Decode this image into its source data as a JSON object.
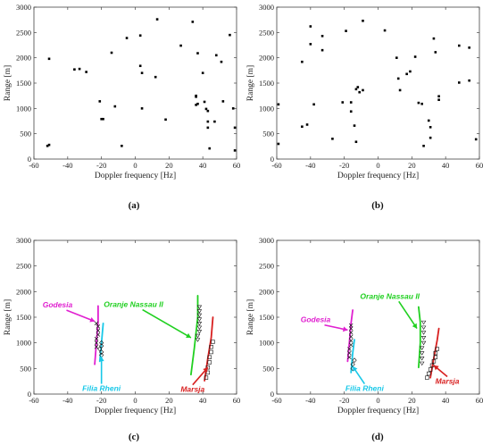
{
  "panels": [
    {
      "label": "(a)"
    },
    {
      "label": "(b)"
    },
    {
      "label": "(c)"
    },
    {
      "label": "(d)"
    }
  ],
  "chart_data": [
    {
      "type": "scatter",
      "panel": "(a)",
      "xlabel": "Doppler frequency [Hz]",
      "ylabel": "Range [m]",
      "xlim": [
        -60,
        60
      ],
      "ylim": [
        0,
        3000
      ],
      "xticks": [
        "-60",
        "-40",
        "-20",
        "0",
        "20",
        "40",
        "60"
      ],
      "yticks": [
        "0",
        "500",
        "1000",
        "1500",
        "2000",
        "2500",
        "3000"
      ],
      "grid": false,
      "points": [
        {
          "x": -51,
          "y": 1980
        },
        {
          "x": -52,
          "y": 260
        },
        {
          "x": -51,
          "y": 280
        },
        {
          "x": -36,
          "y": 1770
        },
        {
          "x": -33,
          "y": 1780
        },
        {
          "x": -29,
          "y": 1720
        },
        {
          "x": -21,
          "y": 1140
        },
        {
          "x": -20,
          "y": 790
        },
        {
          "x": -19,
          "y": 790
        },
        {
          "x": -14,
          "y": 2100
        },
        {
          "x": -12,
          "y": 1040
        },
        {
          "x": -8,
          "y": 260
        },
        {
          "x": -5,
          "y": 2390
        },
        {
          "x": 3,
          "y": 2440
        },
        {
          "x": 3,
          "y": 1840
        },
        {
          "x": 4,
          "y": 1700
        },
        {
          "x": 4,
          "y": 1000
        },
        {
          "x": 12,
          "y": 1620
        },
        {
          "x": 13,
          "y": 2760
        },
        {
          "x": 18,
          "y": 780
        },
        {
          "x": 27,
          "y": 2240
        },
        {
          "x": 34,
          "y": 2710
        },
        {
          "x": 36,
          "y": 1250
        },
        {
          "x": 36,
          "y": 1230
        },
        {
          "x": 36,
          "y": 1070
        },
        {
          "x": 37,
          "y": 2090
        },
        {
          "x": 37,
          "y": 1090
        },
        {
          "x": 40,
          "y": 1700
        },
        {
          "x": 41,
          "y": 1130
        },
        {
          "x": 42,
          "y": 990
        },
        {
          "x": 43,
          "y": 950
        },
        {
          "x": 43,
          "y": 740
        },
        {
          "x": 43,
          "y": 620
        },
        {
          "x": 44,
          "y": 210
        },
        {
          "x": 47,
          "y": 740
        },
        {
          "x": 48,
          "y": 2050
        },
        {
          "x": 51,
          "y": 1920
        },
        {
          "x": 52,
          "y": 1140
        },
        {
          "x": 56,
          "y": 2450
        },
        {
          "x": 58,
          "y": 1000
        },
        {
          "x": 59,
          "y": 620
        },
        {
          "x": 59,
          "y": 170
        }
      ]
    },
    {
      "type": "scatter",
      "panel": "(b)",
      "xlabel": "Doppler frequency [Hz]",
      "ylabel": "Range [m]",
      "xlim": [
        -60,
        60
      ],
      "ylim": [
        0,
        3000
      ],
      "xticks": [
        "-60",
        "-40",
        "-20",
        "0",
        "20",
        "40",
        "60"
      ],
      "yticks": [
        "0",
        "500",
        "1000",
        "1500",
        "2000",
        "2500",
        "3000"
      ],
      "grid": false,
      "points": [
        {
          "x": -59,
          "y": 1080
        },
        {
          "x": -59,
          "y": 300
        },
        {
          "x": -45,
          "y": 1920
        },
        {
          "x": -45,
          "y": 640
        },
        {
          "x": -42,
          "y": 680
        },
        {
          "x": -40,
          "y": 2620
        },
        {
          "x": -40,
          "y": 2270
        },
        {
          "x": -38,
          "y": 1080
        },
        {
          "x": -33,
          "y": 2430
        },
        {
          "x": -33,
          "y": 2150
        },
        {
          "x": -27,
          "y": 400
        },
        {
          "x": -21,
          "y": 1120
        },
        {
          "x": -19,
          "y": 2530
        },
        {
          "x": -16,
          "y": 1120
        },
        {
          "x": -16,
          "y": 940
        },
        {
          "x": -14,
          "y": 660
        },
        {
          "x": -13,
          "y": 1380
        },
        {
          "x": -13,
          "y": 340
        },
        {
          "x": -12,
          "y": 1420
        },
        {
          "x": -11,
          "y": 1320
        },
        {
          "x": -9,
          "y": 2730
        },
        {
          "x": -9,
          "y": 1360
        },
        {
          "x": 4,
          "y": 2540
        },
        {
          "x": 11,
          "y": 2000
        },
        {
          "x": 12,
          "y": 1590
        },
        {
          "x": 13,
          "y": 1360
        },
        {
          "x": 17,
          "y": 1680
        },
        {
          "x": 19,
          "y": 1730
        },
        {
          "x": 22,
          "y": 2020
        },
        {
          "x": 24,
          "y": 1110
        },
        {
          "x": 26,
          "y": 1090
        },
        {
          "x": 27,
          "y": 260
        },
        {
          "x": 30,
          "y": 760
        },
        {
          "x": 31,
          "y": 630
        },
        {
          "x": 31,
          "y": 420
        },
        {
          "x": 33,
          "y": 2380
        },
        {
          "x": 34,
          "y": 2110
        },
        {
          "x": 36,
          "y": 1240
        },
        {
          "x": 36,
          "y": 1170
        },
        {
          "x": 48,
          "y": 2240
        },
        {
          "x": 48,
          "y": 1510
        },
        {
          "x": 54,
          "y": 2200
        },
        {
          "x": 54,
          "y": 1550
        },
        {
          "x": 58,
          "y": 390
        }
      ]
    },
    {
      "type": "line",
      "panel": "(c)",
      "xlabel": "Doppler frequency [Hz]",
      "ylabel": "Range [m]",
      "xlim": [
        -60,
        60
      ],
      "ylim": [
        0,
        3000
      ],
      "xticks": [
        "-60",
        "-40",
        "-20",
        "0",
        "20",
        "40",
        "60"
      ],
      "yticks": [
        "0",
        "500",
        "1000",
        "1500",
        "2000",
        "2500",
        "3000"
      ],
      "grid": false,
      "series": [
        {
          "name": "Godesia",
          "color": "#e020d0",
          "marker": "x",
          "curve": [
            {
              "x": -24,
              "y": 580
            },
            {
              "x": -23,
              "y": 1000
            },
            {
              "x": -22,
              "y": 1420
            },
            {
              "x": -22,
              "y": 1720
            }
          ],
          "detections": [
            {
              "x": -23,
              "y": 920
            },
            {
              "x": -23,
              "y": 1000
            },
            {
              "x": -23,
              "y": 1080
            },
            {
              "x": -22,
              "y": 1160
            },
            {
              "x": -22,
              "y": 1240
            },
            {
              "x": -22,
              "y": 1320
            },
            {
              "x": -23,
              "y": 1380
            }
          ]
        },
        {
          "name": "Filia Rheni",
          "color": "#18c8e8",
          "marker": "diamond",
          "curve": [
            {
              "x": -21,
              "y": 640
            },
            {
              "x": -20,
              "y": 1000
            },
            {
              "x": -19,
              "y": 1380
            }
          ],
          "detections": [
            {
              "x": -20,
              "y": 760
            },
            {
              "x": -20,
              "y": 820
            },
            {
              "x": -21,
              "y": 880
            },
            {
              "x": -20,
              "y": 940
            },
            {
              "x": -20,
              "y": 1000
            }
          ]
        },
        {
          "name": "Oranje Nassau II",
          "color": "#20d020",
          "marker": "triangle",
          "curve": [
            {
              "x": 33,
              "y": 380
            },
            {
              "x": 35,
              "y": 900
            },
            {
              "x": 37,
              "y": 1500
            },
            {
              "x": 37,
              "y": 1920
            }
          ],
          "detections": [
            {
              "x": 37,
              "y": 1060
            },
            {
              "x": 37,
              "y": 1140
            },
            {
              "x": 38,
              "y": 1220
            },
            {
              "x": 38,
              "y": 1300
            },
            {
              "x": 38,
              "y": 1380
            },
            {
              "x": 38,
              "y": 1460
            },
            {
              "x": 38,
              "y": 1540
            },
            {
              "x": 38,
              "y": 1620
            },
            {
              "x": 38,
              "y": 1700
            }
          ]
        },
        {
          "name": "Marsja",
          "color": "#d82020",
          "marker": "square",
          "curve": [
            {
              "x": 41,
              "y": 260
            },
            {
              "x": 43,
              "y": 700
            },
            {
              "x": 45,
              "y": 1100
            },
            {
              "x": 46,
              "y": 1500
            }
          ],
          "detections": [
            {
              "x": 42,
              "y": 320
            },
            {
              "x": 43,
              "y": 420
            },
            {
              "x": 43,
              "y": 520
            },
            {
              "x": 44,
              "y": 620
            },
            {
              "x": 44,
              "y": 720
            },
            {
              "x": 45,
              "y": 820
            },
            {
              "x": 45,
              "y": 920
            },
            {
              "x": 46,
              "y": 1020
            }
          ]
        }
      ],
      "annotations": [
        {
          "text": "Godesia",
          "color": "#e020d0",
          "x": -44,
          "y": 1720,
          "arrow_to": {
            "x": -24,
            "y": 1420
          }
        },
        {
          "text": "Oranje Nassau II",
          "color": "#20d020",
          "x": -5,
          "y": 1720,
          "arrow_to": {
            "x": 33,
            "y": 1100
          }
        },
        {
          "text": "Filia Rheni",
          "color": "#18c8e8",
          "x": -14,
          "y": 70,
          "arrow_to": {
            "x": -20,
            "y": 730
          }
        },
        {
          "text": "Marsja",
          "color": "#d82020",
          "x": 40,
          "y": 30,
          "arrow_to": {
            "x": 43,
            "y": 520
          }
        }
      ]
    },
    {
      "type": "line",
      "panel": "(d)",
      "xlabel": "Doppler frequency [Hz]",
      "ylabel": "Range [m]",
      "xlim": [
        -60,
        60
      ],
      "ylim": [
        0,
        3000
      ],
      "xticks": [
        "-60",
        "-40",
        "-20",
        "0",
        "20",
        "40",
        "60"
      ],
      "yticks": [
        "0",
        "500",
        "1000",
        "1500",
        "2000",
        "2500",
        "3000"
      ],
      "grid": false,
      "series": [
        {
          "name": "Godesia",
          "color": "#e020d0",
          "marker": "x",
          "curve": [
            {
              "x": -18,
              "y": 640
            },
            {
              "x": -17,
              "y": 1000
            },
            {
              "x": -16,
              "y": 1380
            },
            {
              "x": -15,
              "y": 1640
            }
          ],
          "detections": [
            {
              "x": -17,
              "y": 720
            },
            {
              "x": -17,
              "y": 800
            },
            {
              "x": -17,
              "y": 880
            },
            {
              "x": -16,
              "y": 960
            },
            {
              "x": -16,
              "y": 1040
            },
            {
              "x": -16,
              "y": 1120
            },
            {
              "x": -16,
              "y": 1200
            },
            {
              "x": -16,
              "y": 1280
            },
            {
              "x": -16,
              "y": 1340
            }
          ]
        },
        {
          "name": "Filia Rheni",
          "color": "#18c8e8",
          "marker": "diamond",
          "curve": [
            {
              "x": -16,
              "y": 420
            },
            {
              "x": -15,
              "y": 800
            },
            {
              "x": -14,
              "y": 1060
            }
          ],
          "detections": [
            {
              "x": -15,
              "y": 500
            },
            {
              "x": -15,
              "y": 580
            },
            {
              "x": -14,
              "y": 660
            }
          ]
        },
        {
          "name": "Oranje Nassau II",
          "color": "#20d020",
          "marker": "triangle",
          "curve": [
            {
              "x": 24,
              "y": 520
            },
            {
              "x": 25,
              "y": 1000
            },
            {
              "x": 25,
              "y": 1400
            },
            {
              "x": 24,
              "y": 1700
            }
          ],
          "detections": [
            {
              "x": 26,
              "y": 600
            },
            {
              "x": 26,
              "y": 700
            },
            {
              "x": 26,
              "y": 800
            },
            {
              "x": 26,
              "y": 900
            },
            {
              "x": 27,
              "y": 1000
            },
            {
              "x": 27,
              "y": 1100
            },
            {
              "x": 27,
              "y": 1200
            },
            {
              "x": 27,
              "y": 1300
            },
            {
              "x": 27,
              "y": 1400
            }
          ]
        },
        {
          "name": "Marsja",
          "color": "#d82020",
          "marker": "square",
          "curve": [
            {
              "x": 31,
              "y": 320
            },
            {
              "x": 33,
              "y": 700
            },
            {
              "x": 35,
              "y": 1050
            },
            {
              "x": 36,
              "y": 1280
            }
          ],
          "detections": [
            {
              "x": 29,
              "y": 320
            },
            {
              "x": 30,
              "y": 400
            },
            {
              "x": 31,
              "y": 480
            },
            {
              "x": 32,
              "y": 560
            },
            {
              "x": 33,
              "y": 640
            },
            {
              "x": 34,
              "y": 720
            },
            {
              "x": 34,
              "y": 800
            },
            {
              "x": 35,
              "y": 880
            }
          ]
        }
      ],
      "annotations": [
        {
          "text": "Godesia",
          "color": "#e020d0",
          "x": -37,
          "y": 1370,
          "arrow_to": {
            "x": -18,
            "y": 1250
          }
        },
        {
          "text": "Oranje Nassau II",
          "color": "#20d020",
          "x": 10,
          "y": 1840,
          "arrow_to": {
            "x": 23,
            "y": 1280
          }
        },
        {
          "text": "Filia Rheni",
          "color": "#18c8e8",
          "x": -12,
          "y": 70,
          "arrow_to": {
            "x": -15,
            "y": 540
          }
        },
        {
          "text": "Marsja",
          "color": "#d82020",
          "x": 37,
          "y": 190,
          "arrow_to": {
            "x": 33,
            "y": 560
          }
        }
      ]
    }
  ]
}
